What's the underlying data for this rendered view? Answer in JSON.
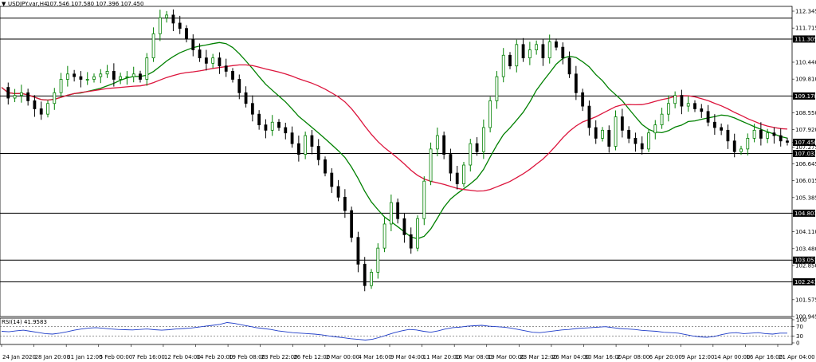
{
  "header": {
    "symbol": "USDJPY.var,H4",
    "ohlc": "107.546 107.580 107.396 107.450"
  },
  "chart_data": [
    {
      "type": "candlestick",
      "title": "USDJPY.var,H4",
      "ylim": [
        100.945,
        112.345
      ],
      "price_ticks": [
        "112.345",
        "111.715",
        "111.305",
        "110.440",
        "109.810",
        "109.178",
        "108.550",
        "107.920",
        "107.450",
        "107.275",
        "107.032",
        "106.645",
        "106.015",
        "105.385",
        "104.803",
        "104.110",
        "103.480",
        "103.051",
        "102.850",
        "102.241",
        "101.575",
        "100.945"
      ],
      "horizontal_levels": [
        112.084,
        111.305,
        109.178,
        107.032,
        104.803,
        103.051,
        102.241
      ],
      "current_price": 107.45,
      "x_labels": [
        "24 Jan 2020",
        "28 Jan 20:00",
        "31 Jan 12:00",
        "5 Feb 00:00",
        "7 Feb 16:00",
        "12 Feb 04:00",
        "14 Feb 20:00",
        "19 Feb 08:00",
        "23 Feb 22:00",
        "26 Feb 12:00",
        "2 Mar 00:00",
        "4 Mar 16:00",
        "9 Mar 04:00",
        "11 Mar 20:00",
        "16 Mar 08:00",
        "19 Mar 00:00",
        "23 Mar 12:00",
        "26 Mar 04:00",
        "30 Mar 16:00",
        "2 Apr 08:00",
        "6 Apr 20:00",
        "9 Apr 12:00",
        "14 Apr 00:00",
        "16 Apr 16:00",
        "21 Apr 04:00"
      ],
      "colors": {
        "up": "#008000",
        "down": "#000000",
        "ma_fast": "#008000",
        "ma_slow": "#dc143c",
        "level_tag": "#000000"
      },
      "close_path": [
        [
          0,
          109.5
        ],
        [
          3,
          109.1
        ],
        [
          6,
          109.2
        ],
        [
          9,
          109.3
        ],
        [
          11,
          109.0
        ],
        [
          13,
          108.7
        ],
        [
          15,
          108.5
        ],
        [
          17,
          108.9
        ],
        [
          19,
          109.3
        ],
        [
          21,
          109.8
        ],
        [
          22,
          110.0
        ],
        [
          24,
          109.9
        ],
        [
          26,
          109.8
        ],
        [
          28,
          109.8
        ],
        [
          30,
          109.9
        ],
        [
          32,
          110.0
        ],
        [
          34,
          110.1
        ],
        [
          36,
          109.8
        ],
        [
          38,
          109.9
        ],
        [
          40,
          109.9
        ],
        [
          42,
          110.0
        ],
        [
          44,
          109.8
        ],
        [
          45,
          110.6
        ],
        [
          46,
          111.5
        ],
        [
          47,
          112.1
        ],
        [
          48,
          112.2
        ],
        [
          49,
          111.9
        ],
        [
          50,
          111.7
        ],
        [
          51,
          111.3
        ],
        [
          52,
          110.9
        ],
        [
          53,
          110.6
        ],
        [
          54,
          110.4
        ],
        [
          55,
          110.6
        ],
        [
          56,
          110.3
        ],
        [
          57,
          110.1
        ],
        [
          58,
          109.8
        ],
        [
          59,
          109.3
        ],
        [
          60,
          108.9
        ],
        [
          61,
          108.5
        ],
        [
          62,
          108.1
        ],
        [
          63,
          107.9
        ],
        [
          64,
          108.2
        ],
        [
          65,
          108.0
        ],
        [
          66,
          107.8
        ],
        [
          67,
          107.4
        ],
        [
          68,
          107.0
        ],
        [
          69,
          107.7
        ],
        [
          70,
          107.3
        ],
        [
          71,
          106.8
        ],
        [
          72,
          106.3
        ],
        [
          73,
          105.8
        ],
        [
          74,
          105.4
        ],
        [
          75,
          104.9
        ],
        [
          76,
          103.9
        ],
        [
          77,
          102.9
        ],
        [
          78,
          102.1
        ],
        [
          79,
          102.6
        ],
        [
          80,
          103.5
        ],
        [
          81,
          104.4
        ],
        [
          82,
          105.2
        ],
        [
          83,
          104.6
        ],
        [
          84,
          104.0
        ],
        [
          85,
          103.5
        ],
        [
          86,
          104.6
        ],
        [
          87,
          106.0
        ],
        [
          88,
          107.2
        ],
        [
          89,
          107.7
        ],
        [
          90,
          107.0
        ],
        [
          91,
          106.3
        ],
        [
          92,
          105.9
        ],
        [
          93,
          106.6
        ],
        [
          94,
          107.4
        ],
        [
          95,
          107.1
        ],
        [
          96,
          108.0
        ],
        [
          97,
          109.0
        ],
        [
          98,
          109.9
        ],
        [
          99,
          110.7
        ],
        [
          100,
          110.3
        ],
        [
          101,
          111.1
        ],
        [
          102,
          110.6
        ],
        [
          103,
          110.9
        ],
        [
          104,
          111.1
        ],
        [
          105,
          110.6
        ],
        [
          106,
          111.2
        ],
        [
          107,
          111.0
        ],
        [
          108,
          110.6
        ],
        [
          109,
          110.0
        ],
        [
          110,
          109.3
        ],
        [
          111,
          108.8
        ],
        [
          112,
          108.0
        ],
        [
          113,
          107.6
        ],
        [
          114,
          107.9
        ],
        [
          115,
          107.3
        ],
        [
          116,
          108.4
        ],
        [
          117,
          107.9
        ],
        [
          118,
          107.6
        ],
        [
          119,
          107.4
        ],
        [
          120,
          107.2
        ],
        [
          121,
          107.8
        ],
        [
          122,
          108.1
        ],
        [
          123,
          108.5
        ],
        [
          124,
          108.9
        ],
        [
          125,
          109.2
        ],
        [
          126,
          108.8
        ],
        [
          127,
          108.9
        ],
        [
          128,
          108.7
        ],
        [
          129,
          108.6
        ],
        [
          130,
          108.2
        ],
        [
          131,
          108.0
        ],
        [
          132,
          107.9
        ],
        [
          133,
          107.5
        ],
        [
          134,
          107.1
        ],
        [
          135,
          107.2
        ],
        [
          136,
          107.6
        ],
        [
          137,
          107.9
        ],
        [
          138,
          107.6
        ],
        [
          139,
          107.8
        ],
        [
          140,
          107.7
        ],
        [
          141,
          107.5
        ],
        [
          142,
          107.45
        ]
      ],
      "rsi": {
        "label": "RSI(14) 41.9583",
        "levels": [
          100,
          70,
          30,
          0
        ],
        "values": [
          50,
          48,
          52,
          55,
          50,
          45,
          40,
          38,
          42,
          48,
          55,
          60,
          64,
          66,
          63,
          60,
          58,
          57,
          56,
          58,
          60,
          57,
          55,
          57,
          60,
          62,
          64,
          68,
          72,
          76,
          80,
          88,
          84,
          78,
          72,
          66,
          62,
          58,
          52,
          48,
          44,
          42,
          40,
          38,
          35,
          30,
          26,
          22,
          18,
          15,
          12,
          16,
          24,
          34,
          44,
          52,
          58,
          56,
          50,
          46,
          52,
          60,
          66,
          68,
          72,
          74,
          76,
          72,
          70,
          68,
          64,
          58,
          52,
          46,
          44,
          48,
          52,
          56,
          58,
          62,
          64,
          66,
          68,
          70,
          66,
          62,
          60,
          58,
          54,
          52,
          50,
          46,
          44,
          42,
          36,
          30,
          26,
          24,
          28,
          36,
          42,
          44,
          40,
          42,
          44,
          40,
          38,
          42,
          41.96
        ]
      }
    }
  ]
}
